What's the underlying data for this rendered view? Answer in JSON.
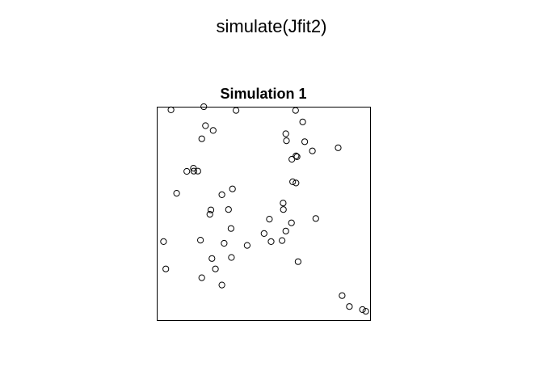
{
  "title": "simulate(Jfit2)",
  "chart_data": {
    "type": "scatter",
    "title": "Simulation 1",
    "xlabel": "",
    "ylabel": "",
    "xlim": [
      0,
      1
    ],
    "ylim": [
      0,
      1
    ],
    "grid": false,
    "marker": "open-circle",
    "x": [
      0.053,
      0.211,
      0.366,
      0.653,
      0.687,
      0.219,
      0.256,
      0.201,
      0.606,
      0.182,
      0.161,
      0.129,
      0.163,
      0.609,
      0.635,
      0.697,
      0.655,
      0.734,
      0.66,
      0.858,
      0.639,
      0.655,
      0.08,
      0.298,
      0.349,
      0.594,
      0.593,
      0.245,
      0.33,
      0.24,
      0.342,
      0.527,
      0.75,
      0.606,
      0.633,
      0.309,
      0.501,
      0.588,
      0.25,
      0.42,
      0.535,
      0.017,
      0.195,
      0.344,
      0.028,
      0.665,
      0.267,
      0.201,
      0.298,
      0.877,
      0.912,
      0.975,
      0.991
    ],
    "y": [
      0.985,
      1.0,
      0.982,
      0.982,
      0.927,
      0.909,
      0.886,
      0.846,
      0.87,
      0.691,
      0.705,
      0.69,
      0.691,
      0.837,
      0.748,
      0.832,
      0.764,
      0.788,
      0.76,
      0.803,
      0.64,
      0.634,
      0.585,
      0.578,
      0.606,
      0.507,
      0.538,
      0.505,
      0.507,
      0.484,
      0.416,
      0.461,
      0.464,
      0.404,
      0.443,
      0.345,
      0.392,
      0.358,
      0.272,
      0.335,
      0.353,
      0.353,
      0.36,
      0.277,
      0.222,
      0.257,
      0.222,
      0.18,
      0.145,
      0.094,
      0.042,
      0.027,
      0.019
    ]
  }
}
